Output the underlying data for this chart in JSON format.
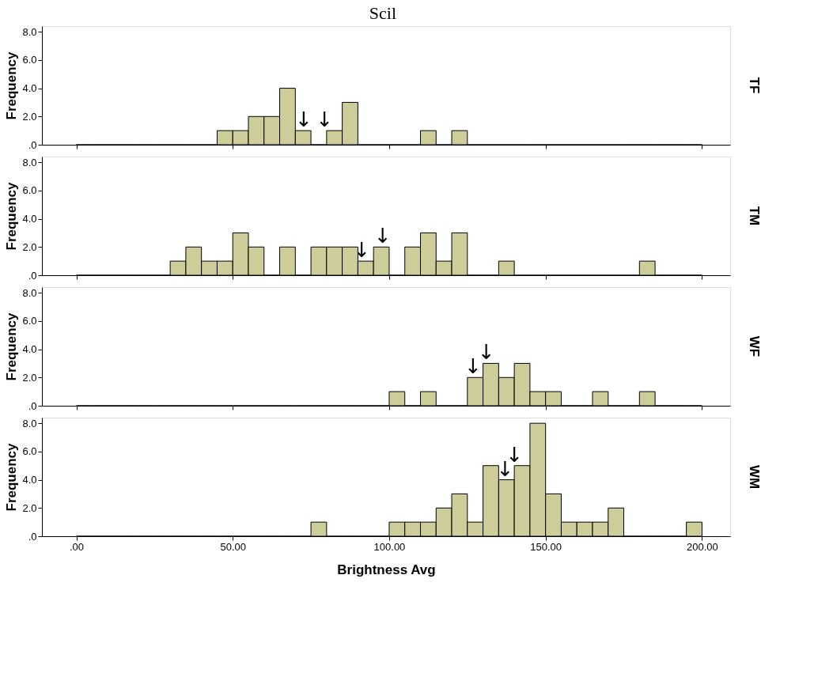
{
  "chart_data": [
    {
      "type": "histogram",
      "title": "Scil",
      "ylabel": "Frequency",
      "y2label": "TF",
      "color": "#cdcd9a",
      "grid": false,
      "tick_labels": "y",
      "bins": [
        0,
        5,
        10,
        15,
        20,
        25,
        30,
        35,
        40,
        45,
        50,
        55,
        60,
        65,
        70,
        75,
        80,
        85,
        90,
        95,
        100,
        105,
        110,
        115,
        120,
        125,
        130,
        135,
        140,
        145,
        150,
        155,
        160,
        165,
        170,
        175,
        180,
        185,
        190,
        195,
        200
      ],
      "values": [
        0,
        0,
        0,
        0,
        0,
        0,
        0,
        0,
        0,
        1,
        1,
        2,
        2,
        4,
        1,
        0,
        1,
        3,
        0,
        0,
        0,
        0,
        1,
        0,
        1,
        0,
        0,
        0,
        0,
        0,
        0,
        0,
        0,
        0,
        0,
        0,
        0,
        0,
        0,
        0
      ],
      "xlim": [
        -11,
        209
      ],
      "xticks": [
        0,
        50,
        100,
        150,
        200
      ],
      "ylim": [
        0,
        8.4
      ],
      "yticks": [
        {
          "value": 0,
          "label": ".0"
        },
        {
          "value": 2,
          "label": "2.0"
        },
        {
          "value": 4,
          "label": "4.0"
        },
        {
          "value": 6,
          "label": "6.0"
        },
        {
          "value": 8,
          "label": "8.0"
        }
      ],
      "annotations": [
        {
          "text": "↓",
          "x": 72.7,
          "y": 1
        },
        {
          "text": "↓",
          "x": 79.3,
          "y": 1
        }
      ]
    },
    {
      "type": "histogram",
      "ylabel": "Frequency",
      "y2label": "TM",
      "color": "#cdcd9a",
      "grid": false,
      "tick_labels": "y",
      "bins": [
        0,
        5,
        10,
        15,
        20,
        25,
        30,
        35,
        40,
        45,
        50,
        55,
        60,
        65,
        70,
        75,
        80,
        85,
        90,
        95,
        100,
        105,
        110,
        115,
        120,
        125,
        130,
        135,
        140,
        145,
        150,
        155,
        160,
        165,
        170,
        175,
        180,
        185,
        190,
        195,
        200
      ],
      "values": [
        0,
        0,
        0,
        0,
        0,
        0,
        1,
        2,
        1,
        1,
        3,
        2,
        0,
        2,
        0,
        2,
        2,
        2,
        1,
        2,
        0,
        2,
        3,
        1,
        3,
        0,
        0,
        1,
        0,
        0,
        0,
        0,
        0,
        0,
        0,
        0,
        1,
        0,
        0,
        0
      ],
      "xlim": [
        -11,
        209
      ],
      "xticks": [
        0,
        50,
        100,
        150,
        200
      ],
      "ylim": [
        0,
        8.4
      ],
      "yticks": [
        {
          "value": 0,
          "label": ".0"
        },
        {
          "value": 2,
          "label": "2.0"
        },
        {
          "value": 4,
          "label": "4.0"
        },
        {
          "value": 6,
          "label": "6.0"
        },
        {
          "value": 8,
          "label": "8.0"
        }
      ],
      "annotations": [
        {
          "text": "↓",
          "x": 91.2,
          "y": 1
        },
        {
          "text": "↓",
          "x": 97.9,
          "y": 2
        }
      ]
    },
    {
      "type": "histogram",
      "ylabel": "Frequency",
      "y2label": "WF",
      "color": "#cdcd9a",
      "grid": false,
      "tick_labels": "y",
      "bins": [
        0,
        5,
        10,
        15,
        20,
        25,
        30,
        35,
        40,
        45,
        50,
        55,
        60,
        65,
        70,
        75,
        80,
        85,
        90,
        95,
        100,
        105,
        110,
        115,
        120,
        125,
        130,
        135,
        140,
        145,
        150,
        155,
        160,
        165,
        170,
        175,
        180,
        185,
        190,
        195,
        200
      ],
      "values": [
        0,
        0,
        0,
        0,
        0,
        0,
        0,
        0,
        0,
        0,
        0,
        0,
        0,
        0,
        0,
        0,
        0,
        0,
        0,
        0,
        1,
        0,
        1,
        0,
        0,
        2,
        3,
        2,
        3,
        1,
        1,
        0,
        0,
        1,
        0,
        0,
        1,
        0,
        0,
        0
      ],
      "xlim": [
        -11,
        209
      ],
      "xticks": [
        0,
        50,
        100,
        150,
        200
      ],
      "ylim": [
        0,
        8.4
      ],
      "yticks": [
        {
          "value": 0,
          "label": ".0"
        },
        {
          "value": 2,
          "label": "2.0"
        },
        {
          "value": 4,
          "label": "4.0"
        },
        {
          "value": 6,
          "label": "6.0"
        },
        {
          "value": 8,
          "label": "8.0"
        }
      ],
      "annotations": [
        {
          "text": "↓",
          "x": 126.8,
          "y": 2
        },
        {
          "text": "↓",
          "x": 131,
          "y": 3
        }
      ]
    },
    {
      "type": "histogram",
      "ylabel": "Frequency",
      "y2label": "WM",
      "xlabel": "Brightness Avg",
      "color": "#cdcd9a",
      "grid": false,
      "bins": [
        0,
        5,
        10,
        15,
        20,
        25,
        30,
        35,
        40,
        45,
        50,
        55,
        60,
        65,
        70,
        75,
        80,
        85,
        90,
        95,
        100,
        105,
        110,
        115,
        120,
        125,
        130,
        135,
        140,
        145,
        150,
        155,
        160,
        165,
        170,
        175,
        180,
        185,
        190,
        195,
        200
      ],
      "values": [
        0,
        0,
        0,
        0,
        0,
        0,
        0,
        0,
        0,
        0,
        0,
        0,
        0,
        0,
        0,
        1,
        0,
        0,
        0,
        0,
        1,
        1,
        1,
        2,
        3,
        1,
        5,
        4,
        5,
        8,
        3,
        1,
        1,
        1,
        2,
        0,
        0,
        0,
        0,
        1
      ],
      "xlim": [
        -11,
        209
      ],
      "xticks": [
        {
          "value": 0,
          "label": ".00"
        },
        {
          "value": 50,
          "label": "50.00"
        },
        {
          "value": 100,
          "label": "100.00"
        },
        {
          "value": 150,
          "label": "150.00"
        },
        {
          "value": 200,
          "label": "200.00"
        }
      ],
      "ylim": [
        0,
        8.4
      ],
      "yticks": [
        {
          "value": 0,
          "label": ".0"
        },
        {
          "value": 2,
          "label": "2.0"
        },
        {
          "value": 4,
          "label": "4.0"
        },
        {
          "value": 6,
          "label": "6.0"
        },
        {
          "value": 8,
          "label": "8.0"
        }
      ],
      "annotations": [
        {
          "text": "↓",
          "x": 137,
          "y": 4
        },
        {
          "text": "↓",
          "x": 140,
          "y": 5
        }
      ]
    }
  ]
}
